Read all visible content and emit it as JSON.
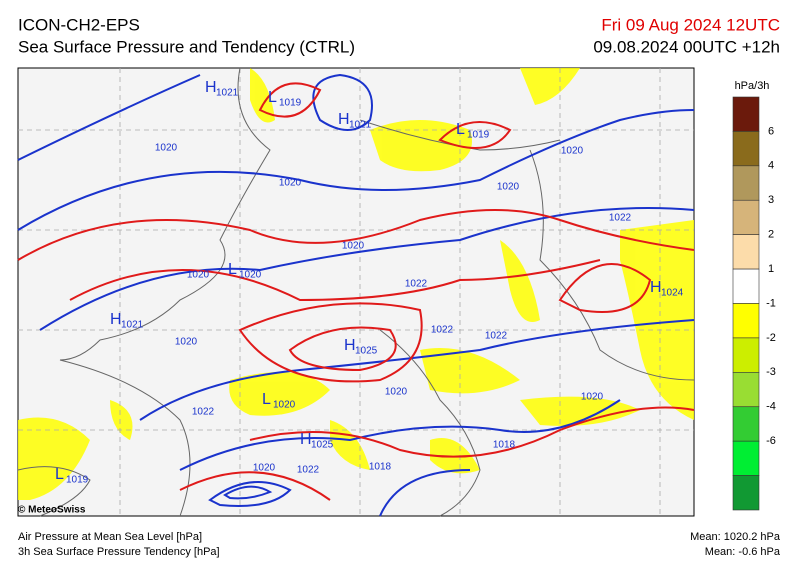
{
  "header": {
    "title": "ICON-CH2-EPS",
    "subtitle": "Sea Surface Pressure and Tendency (CTRL)",
    "valid": "Fri 09 Aug 2024 12UTC",
    "run": "09.08.2024 00UTC +12h"
  },
  "legend": {
    "unit": "hPa/3h",
    "colors": [
      "#6b1a0c",
      "#8a6b1c",
      "#b0985c",
      "#d6b47a",
      "#fcdcaa",
      "#ffffff",
      "#ffff00",
      "#ccee00",
      "#99dd33",
      "#33cc33",
      "#00ee33",
      "#119933"
    ],
    "labels": [
      "6",
      "4",
      "3",
      "2",
      "1",
      "-1",
      "-2",
      "-3",
      "-4",
      "-6"
    ]
  },
  "map": {
    "centers": [
      {
        "letter": "H",
        "value": "1021"
      },
      {
        "letter": "L",
        "value": "1019"
      },
      {
        "letter": "H",
        "value": "1021"
      },
      {
        "letter": "L",
        "value": "1019"
      },
      {
        "letter": "L",
        "value": "1020"
      },
      {
        "letter": "H",
        "value": "1021"
      },
      {
        "letter": "H",
        "value": "1025"
      },
      {
        "letter": "L",
        "value": "1020"
      },
      {
        "letter": "H",
        "value": "1025"
      },
      {
        "letter": "L",
        "value": "1019"
      },
      {
        "letter": "H",
        "value": "1024"
      }
    ],
    "isobar_labels": [
      "1020",
      "1020",
      "1020",
      "1020",
      "1022",
      "1020",
      "1020",
      "1022",
      "1020",
      "1022",
      "1022",
      "1020",
      "1020",
      "1022",
      "1020",
      "1022",
      "1018",
      "1018"
    ]
  },
  "footer": {
    "credit": "© MeteoSwiss",
    "line1": "Air Pressure at Mean Sea Level [hPa]",
    "line2": "3h Sea Surface Pressure Tendency [hPa]",
    "mean1": "Mean: 1020.2 hPa",
    "mean2": "Mean:  -0.6 hPa"
  }
}
